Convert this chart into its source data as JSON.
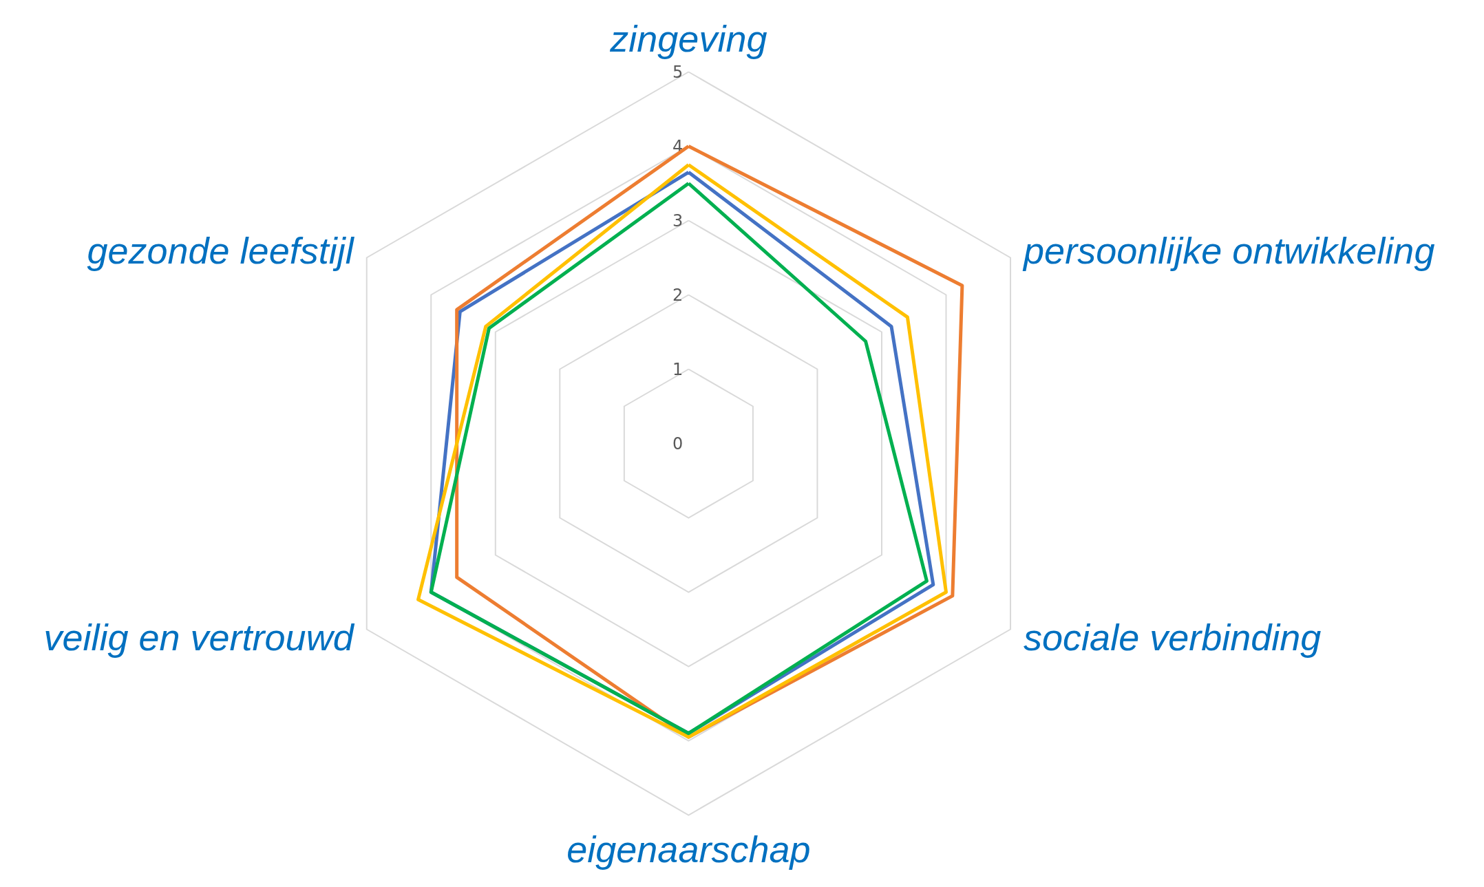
{
  "chart_data": {
    "type": "radar",
    "categories": [
      "zingeving",
      "persoonlijke ontwikkeling",
      "sociale verbinding",
      "eigenaarschap",
      "veilig en vertrouwd",
      "gezonde leefstijl"
    ],
    "series": [
      {
        "color": "#4472c4",
        "values": [
          3.65,
          3.15,
          3.8,
          3.9,
          4.0,
          3.55
        ]
      },
      {
        "color": "#ed7d31",
        "values": [
          4.0,
          4.25,
          4.1,
          3.95,
          3.6,
          3.6
        ]
      },
      {
        "color": "#ffc000",
        "values": [
          3.75,
          3.4,
          4.0,
          3.95,
          4.2,
          3.15
        ]
      },
      {
        "color": "#00b050",
        "values": [
          3.5,
          2.75,
          3.7,
          3.9,
          4.0,
          3.1
        ]
      }
    ],
    "ylim": [
      0,
      5
    ],
    "yticks": [
      0,
      1,
      2,
      3,
      4,
      5
    ],
    "grid": true,
    "marker": "none",
    "line_style": "solid"
  }
}
